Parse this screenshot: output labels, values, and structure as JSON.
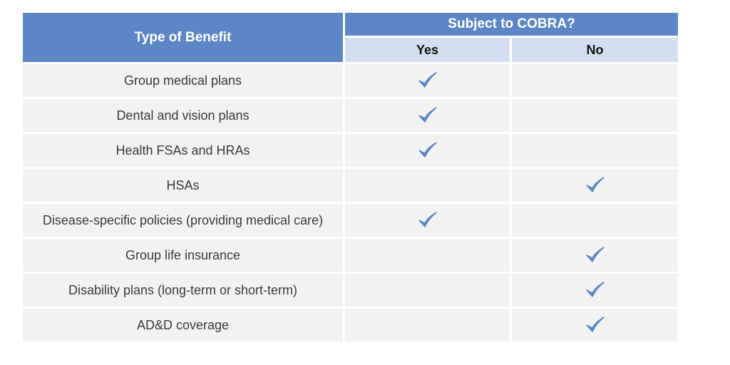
{
  "chart_data": {
    "type": "table",
    "columns": {
      "benefit_header": "Type of Benefit",
      "group_header": "Subject to COBRA?",
      "yes_header": "Yes",
      "no_header": "No"
    },
    "rows": [
      {
        "benefit": "Group medical plans",
        "subject_to_cobra": "Yes"
      },
      {
        "benefit": "Dental and vision plans",
        "subject_to_cobra": "Yes"
      },
      {
        "benefit": "Health FSAs and HRAs",
        "subject_to_cobra": "Yes"
      },
      {
        "benefit": "HSAs",
        "subject_to_cobra": "No"
      },
      {
        "benefit": "Disease-specific policies (providing medical care)",
        "subject_to_cobra": "Yes"
      },
      {
        "benefit": "Group life insurance",
        "subject_to_cobra": "No"
      },
      {
        "benefit": "Disability plans (long-term or short-term)",
        "subject_to_cobra": "No"
      },
      {
        "benefit": "AD&D coverage",
        "subject_to_cobra": "No"
      }
    ]
  },
  "colors": {
    "header_dark": "#5b87c6",
    "header_light": "#d3dff0",
    "row_bg": "#f2f2f2",
    "check": "#5b87c6"
  },
  "icons": {
    "check": "checkmark-icon"
  }
}
